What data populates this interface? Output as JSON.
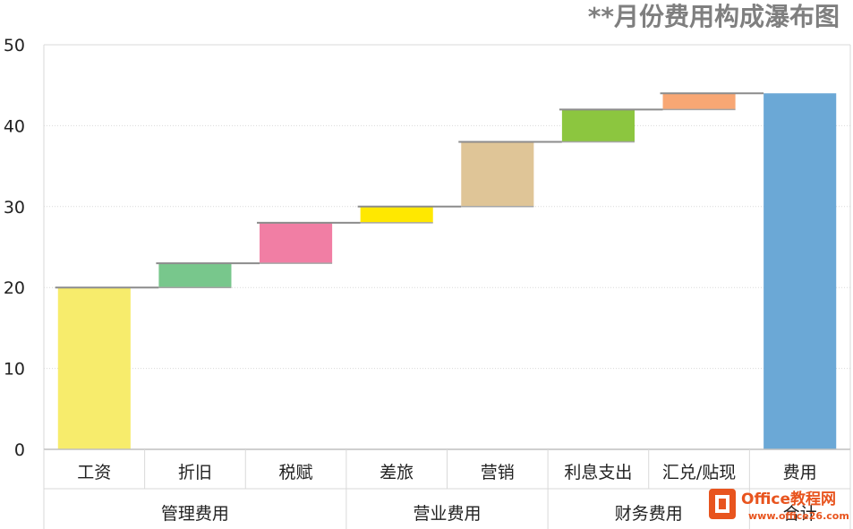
{
  "chart_data": {
    "type": "waterfall",
    "title": "**月份费用构成瀑布图",
    "categories": [
      "工资",
      "折旧",
      "税赋",
      "差旅",
      "营销",
      "利息支出",
      "汇兑/贴现",
      "费用"
    ],
    "groups": [
      {
        "label": "管理费用",
        "categories": [
          "工资",
          "折旧",
          "税赋"
        ]
      },
      {
        "label": "营业费用",
        "categories": [
          "差旅",
          "营销"
        ]
      },
      {
        "label": "财务费用",
        "categories": [
          "利息支出",
          "汇兑/贴现"
        ]
      },
      {
        "label": "合计",
        "categories": [
          "费用"
        ]
      }
    ],
    "values": [
      20,
      3,
      5,
      2,
      8,
      4,
      2,
      44
    ],
    "bases": [
      0,
      20,
      23,
      28,
      30,
      38,
      42,
      0
    ],
    "colors": [
      "#F7EC6C",
      "#78C78C",
      "#F17EA4",
      "#FFE800",
      "#DFC597",
      "#8CC63F",
      "#F8A774",
      "#6BA8D6"
    ],
    "ylim": [
      0,
      50
    ],
    "yticks": [
      0,
      10,
      20,
      30,
      40,
      50
    ],
    "grid": true
  },
  "watermark": {
    "brand": "Office教程网",
    "url": "www.office26.com"
  }
}
